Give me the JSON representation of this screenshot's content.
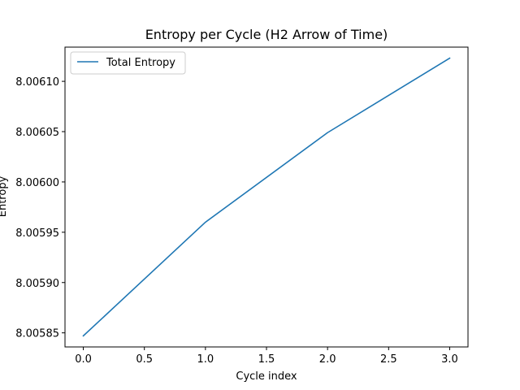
{
  "chart_data": {
    "type": "line",
    "title": "Entropy per Cycle (H2 Arrow of Time)",
    "xlabel": "Cycle index",
    "ylabel": "Entropy",
    "x": [
      0,
      1,
      2,
      3
    ],
    "series": [
      {
        "name": "Total Entropy",
        "color": "#1f77b4",
        "values": [
          8.005847,
          8.00596,
          8.006049,
          8.006123
        ]
      }
    ],
    "xlim": [
      -0.15,
      3.15
    ],
    "ylim": [
      8.005836,
      8.006134
    ],
    "xticks": [
      0.0,
      0.5,
      1.0,
      1.5,
      2.0,
      2.5,
      3.0
    ],
    "xtick_labels": [
      "0.0",
      "0.5",
      "1.0",
      "1.5",
      "2.0",
      "2.5",
      "3.0"
    ],
    "yticks": [
      8.00585,
      8.0059,
      8.00595,
      8.006,
      8.00605,
      8.0061
    ],
    "ytick_labels": [
      "8.00585",
      "8.00590",
      "8.00595",
      "8.00600",
      "8.00605",
      "8.00610"
    ],
    "grid": false,
    "legend_position": "upper-left"
  }
}
